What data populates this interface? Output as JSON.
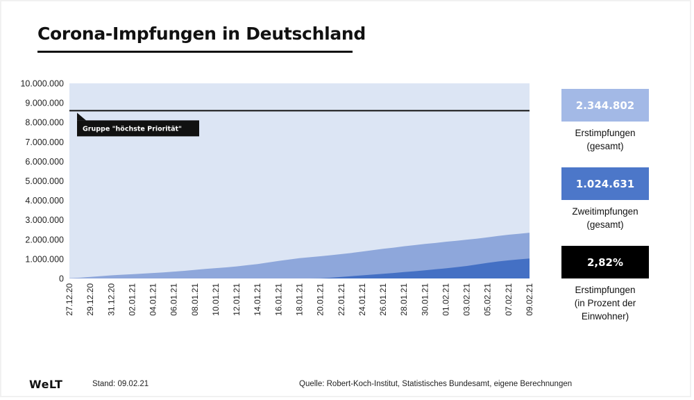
{
  "header": {
    "title": "Corona-Impfungen in Deutschland"
  },
  "annotation": {
    "label": "Gruppe \"höchste Priorität\"",
    "value": 8600000
  },
  "stats": [
    {
      "value": "2.344.802",
      "label_lines": [
        "Erstimpfungen",
        "(gesamt)"
      ],
      "color": "#a3b9e6"
    },
    {
      "value": "1.024.631",
      "label_lines": [
        "Zweitimpfungen",
        "(gesamt)"
      ],
      "color": "#4c77c9"
    },
    {
      "value": "2,82%",
      "label_lines": [
        "Erstimpfungen",
        "(in Prozent der",
        "Einwohner)"
      ],
      "color": "#000000"
    }
  ],
  "footer": {
    "logo": "WeLT",
    "stand": "Stand:  09.02.21",
    "source": "Quelle: Robert-Koch-Institut, Statistisches Bundesamt, eigene Berechnungen"
  },
  "colors": {
    "background": "#dce5f4",
    "first_dose": "#8ea7db",
    "second_dose": "#4470c4",
    "priority_line": "#111111"
  },
  "chart_data": {
    "type": "area",
    "title": "Corona-Impfungen in Deutschland",
    "xlabel": "",
    "ylabel": "",
    "ylim": [
      0,
      10000000
    ],
    "yticks": [
      0,
      1000000,
      2000000,
      3000000,
      4000000,
      5000000,
      6000000,
      7000000,
      8000000,
      9000000,
      10000000
    ],
    "ytick_labels": [
      "0",
      "1.000.000",
      "2.000.000",
      "3.000.000",
      "4.000.000",
      "5.000.000",
      "6.000.000",
      "7.000.000",
      "8.000.000",
      "9.000.000",
      "10.000.000"
    ],
    "x": [
      "27.12.20",
      "28.12.20",
      "29.12.20",
      "30.12.20",
      "31.12.20",
      "01.01.21",
      "02.01.21",
      "03.01.21",
      "04.01.21",
      "05.01.21",
      "06.01.21",
      "07.01.21",
      "08.01.21",
      "09.01.21",
      "10.01.21",
      "11.01.21",
      "12.01.21",
      "13.01.21",
      "14.01.21",
      "15.01.21",
      "16.01.21",
      "17.01.21",
      "18.01.21",
      "19.01.21",
      "20.01.21",
      "21.01.21",
      "22.01.21",
      "23.01.21",
      "24.01.21",
      "25.01.21",
      "26.01.21",
      "27.01.21",
      "28.01.21",
      "29.01.21",
      "30.01.21",
      "31.01.21",
      "01.02.21",
      "02.02.21",
      "03.02.21",
      "04.02.21",
      "05.02.21",
      "06.02.21",
      "07.02.21",
      "08.02.21",
      "09.02.21"
    ],
    "xtick_labels": [
      "27.12.20",
      "29.12.20",
      "31.12.20",
      "02.01.21",
      "04.01.21",
      "06.01.21",
      "08.01.21",
      "10.01.21",
      "12.01.21",
      "14.01.21",
      "16.01.21",
      "18.01.21",
      "20.01.21",
      "22.01.21",
      "24.01.21",
      "26.01.21",
      "28.01.21",
      "30.01.21",
      "01.02.21",
      "03.02.21",
      "05.02.21",
      "07.02.21",
      "09.02.21"
    ],
    "series": [
      {
        "name": "Erstimpfungen",
        "values": [
          20000,
          40000,
          80000,
          120000,
          160000,
          190000,
          220000,
          250000,
          280000,
          310000,
          350000,
          390000,
          440000,
          490000,
          530000,
          570000,
          620000,
          680000,
          740000,
          820000,
          900000,
          970000,
          1040000,
          1090000,
          1140000,
          1190000,
          1250000,
          1310000,
          1380000,
          1450000,
          1520000,
          1580000,
          1650000,
          1710000,
          1770000,
          1820000,
          1880000,
          1930000,
          1990000,
          2040000,
          2110000,
          2180000,
          2240000,
          2290000,
          2344802
        ]
      },
      {
        "name": "Zweitimpfungen",
        "values": [
          0,
          0,
          0,
          0,
          0,
          0,
          0,
          0,
          0,
          0,
          0,
          0,
          0,
          0,
          0,
          0,
          0,
          0,
          0,
          0,
          0,
          0,
          0,
          0,
          10000,
          40000,
          80000,
          120000,
          160000,
          200000,
          240000,
          280000,
          330000,
          370000,
          420000,
          470000,
          520000,
          580000,
          640000,
          720000,
          800000,
          870000,
          930000,
          980000,
          1024631
        ]
      }
    ],
    "reference_line": {
      "label": "Gruppe \"höchste Priorität\"",
      "value": 8600000
    }
  }
}
